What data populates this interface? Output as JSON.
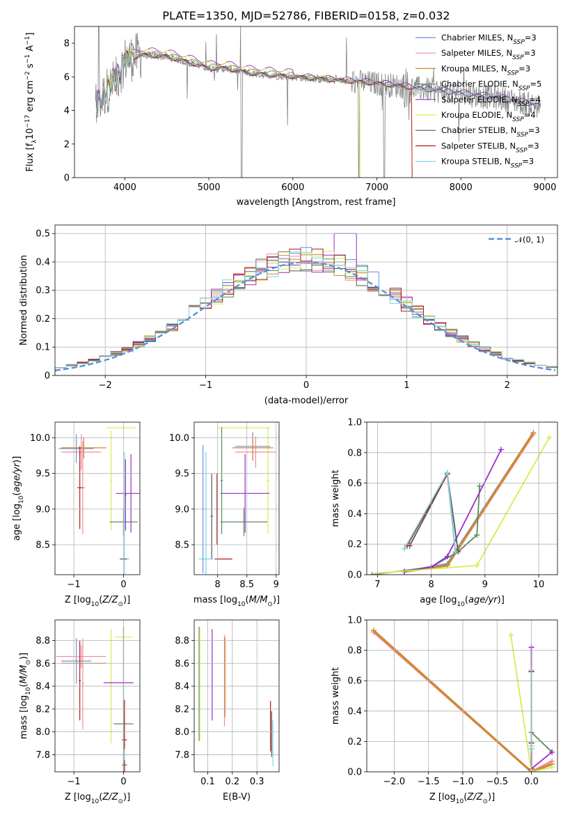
{
  "figure_title": "PLATE=1350, MJD=52786, FIBERID=0158, z=0.032",
  "colors": {
    "Chabrier MILES": "#6f8fdc",
    "Salpeter MILES": "#f08a9a",
    "Kroupa MILES": "#d08a2a",
    "Chabrier ELODIE": "#5a8a5a",
    "Salpeter ELODIE": "#9a2ac8",
    "Kroupa ELODIE": "#d4ec50",
    "Chabrier STELIB": "#555555",
    "Salpeter STELIB": "#b01818",
    "Kroupa STELIB": "#7ad8e0",
    "data": "#808080",
    "gaussian": "#5b8fd6"
  },
  "chart_data": [
    {
      "id": "spectrum",
      "type": "line",
      "title": "PLATE=1350, MJD=52786, FIBERID=0158, z=0.032",
      "xlabel": "wavelength [Angstrom, rest frame]",
      "ylabel": "Flux [f_λ 10^-17 erg cm^-2 s^-1 A^-1]",
      "xlim": [
        3400,
        9150
      ],
      "ylim": [
        0,
        9
      ],
      "xticks": [
        4000,
        5000,
        6000,
        7000,
        8000,
        9000
      ],
      "yticks": [
        0,
        2,
        4,
        6,
        8
      ],
      "legend_position": "upper right",
      "legend": [
        "Chabrier MILES, N_SSP=3",
        "Salpeter MILES, N_SSP=3",
        "Kroupa MILES, N_SSP=3",
        "Chabrier ELODIE, N_SSP=5",
        "Salpeter ELODIE, N_SSP=4",
        "Kroupa ELODIE, N_SSP=4",
        "Chabrier STELIB, N_SSP=3",
        "Salpeter STELIB, N_SSP=3",
        "Kroupa STELIB, N_SSP=3"
      ],
      "continuum": [
        [
          3650,
          4.1
        ],
        [
          3700,
          4.5
        ],
        [
          3800,
          5.3
        ],
        [
          3900,
          5.8
        ],
        [
          4000,
          7.0
        ],
        [
          4200,
          7.3
        ],
        [
          4500,
          7.2
        ],
        [
          4800,
          6.8
        ],
        [
          5000,
          6.5
        ],
        [
          5200,
          6.5
        ],
        [
          5500,
          6.2
        ],
        [
          6000,
          6.0
        ],
        [
          6500,
          5.8
        ],
        [
          7000,
          5.6
        ],
        [
          7500,
          5.3
        ],
        [
          8000,
          5.0
        ],
        [
          8500,
          4.7
        ],
        [
          8900,
          4.3
        ]
      ],
      "model_spread": {
        "Salpeter ELODIE": 0.35,
        "Kroupa ELODIE": 0.25,
        "Chabrier ELODIE": 0.15,
        "Kroupa STELIB": 0.0
      }
    },
    {
      "id": "residuals",
      "type": "line",
      "xlabel": "(data-model)/error",
      "ylabel": "Normed distribution",
      "xlim": [
        -2.5,
        2.5
      ],
      "ylim": [
        0,
        0.53
      ],
      "xticks": [
        -2,
        -1,
        0,
        1,
        2
      ],
      "yticks": [
        0.0,
        0.1,
        0.2,
        0.3,
        0.4,
        0.5
      ],
      "legend": [
        "𝒩(0, 1)"
      ],
      "legend_position": "upper right",
      "bins": 45
    },
    {
      "id": "age-vs-Z",
      "type": "scatter",
      "xlabel": "Z [log10(Z/Z⊙)]",
      "ylabel": "age [log10(age/yr)]",
      "xlim": [
        -1.38,
        0.33
      ],
      "ylim": [
        8.08,
        10.22
      ],
      "xticks": [
        -1,
        0
      ],
      "yticks": [
        8.5,
        9.0,
        9.5,
        10.0
      ],
      "errorbars": [
        {
          "model": "Chabrier MILES",
          "x": -0.95,
          "y": 9.85,
          "xerr": 0.35,
          "yerr": 0.2
        },
        {
          "model": "Salpeter MILES",
          "x": -0.85,
          "y": 9.8,
          "xerr": 0.4,
          "yerr": 0.25
        },
        {
          "model": "Kroupa MILES",
          "x": -0.8,
          "y": 9.86,
          "xerr": 0.45,
          "yerr": 0.15
        },
        {
          "model": "Salpeter MILES",
          "x": -0.82,
          "y": 9.3,
          "xerr": 0.05,
          "yerr": 0.65
        },
        {
          "model": "Salpeter STELIB",
          "x": -0.88,
          "y": 9.3,
          "xerr": 0.05,
          "yerr": 0.58
        },
        {
          "model": "Kroupa ELODIE",
          "x": -0.05,
          "y": 10.14,
          "xerr": 0.3,
          "yerr": 0.0
        },
        {
          "model": "Kroupa ELODIE",
          "x": -0.25,
          "y": 9.4,
          "xerr": 0.02,
          "yerr": 0.7
        },
        {
          "model": "Salpeter ELODIE",
          "x": 0.15,
          "y": 9.22,
          "xerr": 0.3,
          "yerr": 0.55
        },
        {
          "model": "Chabrier ELODIE",
          "x": 0.0,
          "y": 8.82,
          "xerr": 0.28,
          "yerr": 0.2
        },
        {
          "model": "Kroupa STELIB",
          "x": 0.02,
          "y": 8.3,
          "xerr": 0.1,
          "yerr": 1.5
        },
        {
          "model": "Chabrier STELIB",
          "x": 0.0,
          "y": 8.3,
          "xerr": 0.07,
          "yerr": 0.0
        },
        {
          "model": "Salpeter ELODIE",
          "x": 0.04,
          "y": 9.2,
          "xerr": 0.02,
          "yerr": 0.5
        }
      ]
    },
    {
      "id": "age-vs-mass",
      "type": "scatter",
      "xlabel": "mass [log10(M/M⊙)]",
      "xlim": [
        7.6,
        9.05
      ],
      "ylim": [
        8.08,
        10.22
      ],
      "xticks": [
        8.0,
        8.5,
        9.0
      ],
      "yticks": [
        8.5,
        9.0,
        9.5,
        10.0
      ],
      "errorbars": [
        {
          "model": "Kroupa ELODIE",
          "x": 8.45,
          "y": 10.14,
          "xerr": 0.45,
          "yerr": 0.0
        },
        {
          "model": "Kroupa ELODIE",
          "x": 8.86,
          "y": 9.4,
          "xerr": 0.02,
          "yerr": 0.75
        },
        {
          "model": "Chabrier MILES",
          "x": 8.6,
          "y": 9.88,
          "xerr": 0.3,
          "yerr": 0.2
        },
        {
          "model": "Salpeter MILES",
          "x": 8.65,
          "y": 9.8,
          "xerr": 0.35,
          "yerr": 0.22
        },
        {
          "model": "Kroupa MILES",
          "x": 8.6,
          "y": 9.86,
          "xerr": 0.35,
          "yerr": 0.18
        },
        {
          "model": "Salpeter ELODIE",
          "x": 8.47,
          "y": 9.22,
          "xerr": 0.42,
          "yerr": 0.55
        },
        {
          "model": "Chabrier ELODIE",
          "x": 8.45,
          "y": 8.82,
          "xerr": 0.4,
          "yerr": 0.2
        },
        {
          "model": "Chabrier ELODIE",
          "x": 8.07,
          "y": 9.4,
          "xerr": 0.02,
          "yerr": 0.75
        },
        {
          "model": "Salpeter STELIB",
          "x": 7.99,
          "y": 9.0,
          "xerr": 0.02,
          "yerr": 0.5
        },
        {
          "model": "Chabrier STELIB",
          "x": 7.9,
          "y": 8.9,
          "xerr": 0.02,
          "yerr": 0.6
        },
        {
          "model": "Kroupa STELIB",
          "x": 7.8,
          "y": 8.3,
          "xerr": 0.12,
          "yerr": 1.5
        },
        {
          "model": "Salpeter STELIB",
          "x": 8.1,
          "y": 8.3,
          "xerr": 0.15,
          "yerr": 0.0
        },
        {
          "model": "Chabrier MILES",
          "x": 7.75,
          "y": 9.0,
          "xerr": 0.02,
          "yerr": 0.9
        }
      ]
    },
    {
      "id": "massweight-vs-age",
      "type": "line",
      "xlabel": "age [log10(age/yr)]",
      "ylabel": "mass weight",
      "xlim": [
        6.8,
        10.35
      ],
      "ylim": [
        0,
        1.0
      ],
      "xticks": [
        7,
        8,
        9,
        10
      ],
      "yticks": [
        0.0,
        0.2,
        0.4,
        0.6,
        0.8,
        1.0
      ],
      "series": [
        {
          "model": "Chabrier MILES",
          "x": [
            7.5,
            8.3,
            9.9
          ],
          "y": [
            0.02,
            0.07,
            0.93
          ]
        },
        {
          "model": "Salpeter MILES",
          "x": [
            7.5,
            8.3,
            9.9
          ],
          "y": [
            0.02,
            0.06,
            0.92
          ]
        },
        {
          "model": "Kroupa MILES",
          "x": [
            7.5,
            8.3,
            9.9
          ],
          "y": [
            0.02,
            0.06,
            0.93
          ]
        },
        {
          "model": "Chabrier ELODIE",
          "x": [
            6.9,
            8.0,
            8.5,
            8.85,
            8.9
          ],
          "y": [
            0.0,
            0.05,
            0.15,
            0.26,
            0.58
          ]
        },
        {
          "model": "Salpeter ELODIE",
          "x": [
            7.5,
            8.0,
            8.3,
            9.3
          ],
          "y": [
            0.02,
            0.05,
            0.12,
            0.82
          ]
        },
        {
          "model": "Kroupa ELODIE",
          "x": [
            7.0,
            8.85,
            10.2
          ],
          "y": [
            0.01,
            0.06,
            0.9
          ]
        },
        {
          "model": "Chabrier STELIB",
          "x": [
            7.6,
            8.3,
            8.5
          ],
          "y": [
            0.19,
            0.66,
            0.15
          ]
        },
        {
          "model": "Salpeter STELIB",
          "x": [
            7.55,
            8.3,
            8.45
          ],
          "y": [
            0.19,
            0.66,
            0.15
          ]
        },
        {
          "model": "Kroupa STELIB",
          "x": [
            7.5,
            8.3,
            8.45
          ],
          "y": [
            0.17,
            0.67,
            0.15
          ]
        }
      ]
    },
    {
      "id": "mass-vs-Z",
      "type": "scatter",
      "xlabel": "Z [log10(Z/Z⊙)]",
      "ylabel": "mass [log10(M/M⊙)]",
      "xlim": [
        -1.38,
        0.33
      ],
      "ylim": [
        7.65,
        8.98
      ],
      "xticks": [
        -1,
        0
      ],
      "yticks": [
        7.8,
        8.0,
        8.2,
        8.4,
        8.6,
        8.8
      ],
      "errorbars": [
        {
          "model": "Chabrier MILES",
          "x": -0.95,
          "y": 8.62,
          "xerr": 0.3,
          "yerr": 0.2
        },
        {
          "model": "Salpeter MILES",
          "x": -0.85,
          "y": 8.66,
          "xerr": 0.5,
          "yerr": 0.1
        },
        {
          "model": "Kroupa MILES",
          "x": -0.8,
          "y": 8.6,
          "xerr": 0.45,
          "yerr": 0.0
        },
        {
          "model": "Salpeter MILES",
          "x": -0.82,
          "y": 8.42,
          "xerr": 0.02,
          "yerr": 0.4
        },
        {
          "model": "Salpeter STELIB",
          "x": -0.88,
          "y": 8.45,
          "xerr": 0.02,
          "yerr": 0.35
        },
        {
          "model": "Kroupa ELODIE",
          "x": 0.0,
          "y": 8.83,
          "xerr": 0.17,
          "yerr": 0.0
        },
        {
          "model": "Kroupa ELODIE",
          "x": -0.25,
          "y": 8.4,
          "xerr": 0.02,
          "yerr": 0.5
        },
        {
          "model": "Salpeter ELODIE",
          "x": -0.1,
          "y": 8.43,
          "xerr": 0.3,
          "yerr": 0.0
        },
        {
          "model": "Chabrier ELODIE",
          "x": 0.0,
          "y": 8.07,
          "xerr": 0.2,
          "yerr": 0.85
        },
        {
          "model": "Salpeter STELIB",
          "x": 0.02,
          "y": 7.93,
          "xerr": 0.05,
          "yerr": 0.35
        },
        {
          "model": "Kroupa STELIB",
          "x": 0.02,
          "y": 7.8,
          "xerr": 0.05,
          "yerr": 0.05
        },
        {
          "model": "Chabrier STELIB",
          "x": 0.02,
          "y": 7.71,
          "xerr": 0.05,
          "yerr": 0.0
        }
      ]
    },
    {
      "id": "mass-vs-ebv",
      "type": "scatter",
      "xlabel": "E(B-V)",
      "xlim": [
        0.045,
        0.39
      ],
      "ylim": [
        7.65,
        8.98
      ],
      "xticks": [
        0.1,
        0.2,
        0.3
      ],
      "yticks": [
        7.8,
        8.0,
        8.2,
        8.4,
        8.6,
        8.8
      ],
      "errorbars": [
        {
          "model": "Chabrier ELODIE",
          "x": 0.065,
          "y": 8.42,
          "xerr": 0.0,
          "yerr": 0.5
        },
        {
          "model": "Kroupa ELODIE",
          "x": 0.068,
          "y": 8.42,
          "xerr": 0.0,
          "yerr": 0.5
        },
        {
          "model": "Salpeter ELODIE",
          "x": 0.118,
          "y": 8.5,
          "xerr": 0.0,
          "yerr": 0.4
        },
        {
          "model": "Chabrier MILES",
          "x": 0.17,
          "y": 8.5,
          "xerr": 0.0,
          "yerr": 0.33
        },
        {
          "model": "Salpeter MILES",
          "x": 0.168,
          "y": 8.45,
          "xerr": 0.0,
          "yerr": 0.4
        },
        {
          "model": "Kroupa MILES",
          "x": 0.17,
          "y": 8.48,
          "xerr": 0.0,
          "yerr": 0.35
        },
        {
          "model": "Salpeter STELIB",
          "x": 0.355,
          "y": 8.05,
          "xerr": 0.0,
          "yerr": 0.22
        },
        {
          "model": "Chabrier STELIB",
          "x": 0.36,
          "y": 7.98,
          "xerr": 0.0,
          "yerr": 0.2
        },
        {
          "model": "Kroupa STELIB",
          "x": 0.365,
          "y": 7.9,
          "xerr": 0.0,
          "yerr": 0.2
        }
      ]
    },
    {
      "id": "massweight-vs-Z",
      "type": "line",
      "xlabel": "Z [log10(Z/Z⊙)]",
      "ylabel": "mass weight",
      "xlim": [
        -2.4,
        0.38
      ],
      "ylim": [
        0,
        1.0
      ],
      "xticks": [
        -2.0,
        -1.5,
        -1.0,
        -0.5,
        0.0
      ],
      "yticks": [
        0.0,
        0.2,
        0.4,
        0.6,
        0.8,
        1.0
      ],
      "series": [
        {
          "model": "Chabrier MILES",
          "x": [
            -2.3,
            0.0,
            0.3
          ],
          "y": [
            0.93,
            0.0,
            0.05
          ]
        },
        {
          "model": "Salpeter MILES",
          "x": [
            -2.3,
            0.0,
            0.3
          ],
          "y": [
            0.92,
            0.0,
            0.07
          ]
        },
        {
          "model": "Kroupa MILES",
          "x": [
            -2.3,
            0.0,
            0.3
          ],
          "y": [
            0.93,
            0.0,
            0.05
          ]
        },
        {
          "model": "Chabrier ELODIE",
          "x": [
            0.0,
            0.0,
            0.3
          ],
          "y": [
            0.02,
            0.26,
            0.13
          ]
        },
        {
          "model": "Salpeter ELODIE",
          "x": [
            0.0,
            0.0,
            0.3
          ],
          "y": [
            0.82,
            0.02,
            0.13
          ]
        },
        {
          "model": "Kroupa ELODIE",
          "x": [
            -0.3,
            0.0,
            0.3
          ],
          "y": [
            0.9,
            0.0,
            0.03
          ]
        },
        {
          "model": "Chabrier STELIB",
          "x": [
            0.0,
            0.0,
            0.0
          ],
          "y": [
            0.66,
            0.19,
            0.15
          ]
        },
        {
          "model": "Salpeter STELIB",
          "x": [
            0.0,
            0.0,
            0.0
          ],
          "y": [
            0.66,
            0.19,
            0.15
          ]
        },
        {
          "model": "Kroupa STELIB",
          "x": [
            0.0,
            0.0,
            0.0
          ],
          "y": [
            0.67,
            0.17,
            0.15
          ]
        }
      ]
    }
  ]
}
